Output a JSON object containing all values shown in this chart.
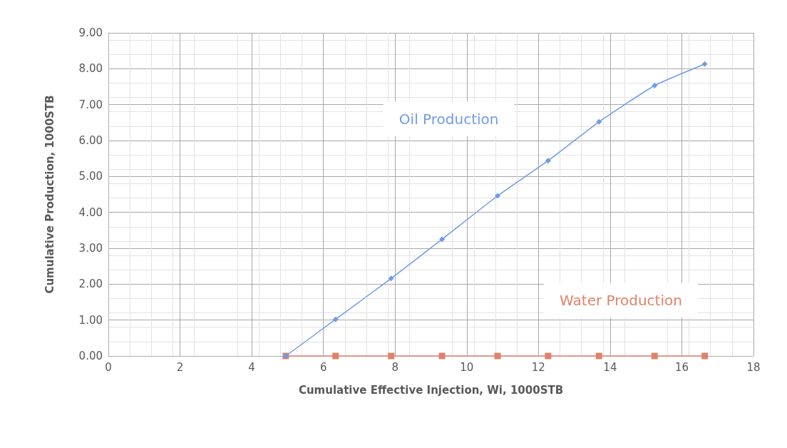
{
  "chart_data": {
    "type": "line",
    "xlabel": "Cumulative Effective Injection, Wi, 1000STB",
    "ylabel": "Cumulative Production, 1000STB",
    "x": [
      4.95,
      6.34,
      7.89,
      9.31,
      10.86,
      12.27,
      13.69,
      15.24,
      16.64
    ],
    "series": [
      {
        "name": "Oil Production",
        "color": "#6f9be8",
        "marker": "diamond",
        "values": [
          0,
          1.02,
          2.16,
          3.25,
          4.46,
          5.44,
          6.52,
          7.53,
          8.13
        ]
      },
      {
        "name": "Water Production",
        "color": "#e0826a",
        "marker": "square",
        "values": [
          0,
          0,
          0,
          0,
          0,
          0,
          0,
          0,
          0
        ]
      }
    ],
    "xlim": [
      0,
      18
    ],
    "xticks": [
      0,
      2,
      4,
      6,
      8,
      10,
      12,
      14,
      16,
      18
    ],
    "ylim": [
      0,
      9
    ],
    "yticks": [
      {
        "value": 0,
        "label": "0.00"
      },
      {
        "value": 1,
        "label": "1.00"
      },
      {
        "value": 2,
        "label": "2.00"
      },
      {
        "value": 3,
        "label": "3.00"
      },
      {
        "value": 4,
        "label": "4.00"
      },
      {
        "value": 5,
        "label": "5.00"
      },
      {
        "value": 6,
        "label": "6.00"
      },
      {
        "value": 7,
        "label": "7.00"
      },
      {
        "value": 8,
        "label": "8.00"
      },
      {
        "value": 9,
        "label": "9.00"
      }
    ],
    "grid": true,
    "legend": false
  }
}
